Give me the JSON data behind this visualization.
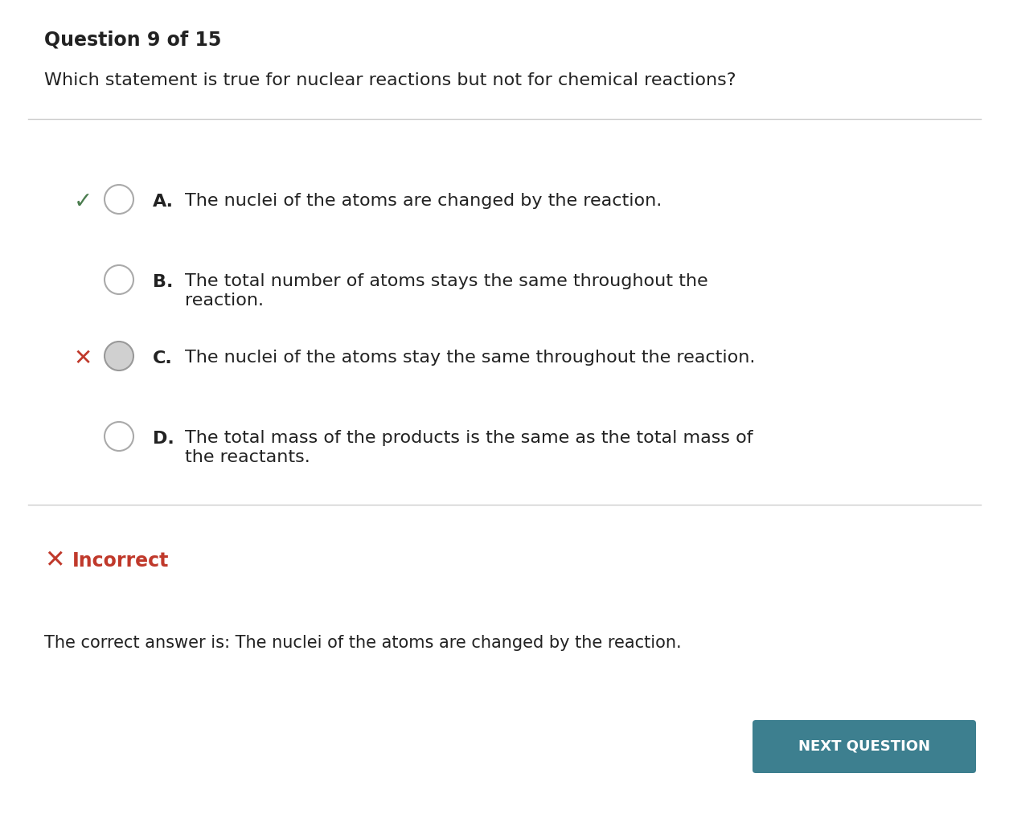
{
  "title": "Question 9 of 15",
  "question": "Which statement is true for nuclear reactions but not for chemical reactions?",
  "options": [
    {
      "letter": "A.",
      "text": "The nuclei of the atoms are changed by the reaction.",
      "line2": "",
      "has_check": true,
      "has_cross": false,
      "filled_circle": false
    },
    {
      "letter": "B.",
      "text": "The total number of atoms stays the same throughout the",
      "line2": "reaction.",
      "has_check": false,
      "has_cross": false,
      "filled_circle": false
    },
    {
      "letter": "C.",
      "text": "The nuclei of the atoms stay the same throughout the reaction.",
      "line2": "",
      "has_check": false,
      "has_cross": true,
      "filled_circle": true
    },
    {
      "letter": "D.",
      "text": "The total mass of the products is the same as the total mass of",
      "line2": "the reactants.",
      "has_check": false,
      "has_cross": false,
      "filled_circle": false
    }
  ],
  "result_text": "Incorrect",
  "correct_answer_text": "The correct answer is: The nuclei of the atoms are changed by the reaction.",
  "button_text": "NEXT QUESTION",
  "button_color": "#3d7f8f",
  "button_text_color": "#ffffff",
  "background_color": "#ffffff",
  "check_color": "#4a7c4e",
  "cross_color": "#c0392b",
  "incorrect_color": "#c0392b",
  "circle_color": "#aaaaaa",
  "selected_circle_fill": "#d0d0d0",
  "divider_color": "#cccccc",
  "text_color": "#222222",
  "title_fontsize": 17,
  "question_fontsize": 16,
  "option_fontsize": 16,
  "result_fontsize": 17,
  "answer_fontsize": 15
}
